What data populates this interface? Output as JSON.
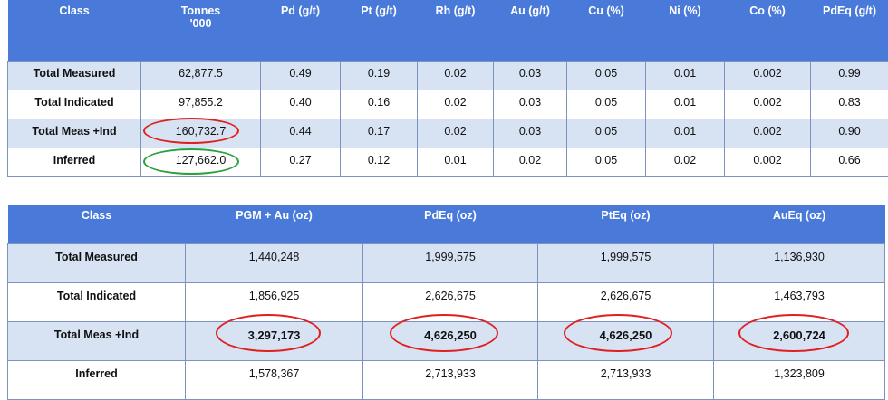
{
  "table1": {
    "headers": [
      "Class",
      "Tonnes\n'000",
      "Pd (g/t)",
      "Pt (g/t)",
      "Rh (g/t)",
      "Au (g/t)",
      "Cu (%)",
      "Ni (%)",
      "Co (%)",
      "PdEq (g/t)"
    ],
    "rows": [
      [
        "Total Measured",
        "62,877.5",
        "0.49",
        "0.19",
        "0.02",
        "0.03",
        "0.05",
        "0.01",
        "0.002",
        "0.99"
      ],
      [
        "Total Indicated",
        "97,855.2",
        "0.40",
        "0.16",
        "0.02",
        "0.03",
        "0.05",
        "0.01",
        "0.002",
        "0.83"
      ],
      [
        "Total Meas +Ind",
        "160,732.7",
        "0.44",
        "0.17",
        "0.02",
        "0.03",
        "0.05",
        "0.01",
        "0.002",
        "0.90"
      ],
      [
        "Inferred",
        "127,662.0",
        "0.27",
        "0.12",
        "0.01",
        "0.02",
        "0.05",
        "0.02",
        "0.002",
        "0.66"
      ]
    ]
  },
  "table2": {
    "headers": [
      "Class",
      "PGM + Au (oz)",
      "PdEq (oz)",
      "PtEq (oz)",
      "AuEq (oz)"
    ],
    "rows": [
      [
        "Total Measured",
        "1,440,248",
        "1,999,575",
        "1,999,575",
        "1,136,930"
      ],
      [
        "Total Indicated",
        "1,856,925",
        "2,626,675",
        "2,626,675",
        "1,463,793"
      ],
      [
        "Total Meas +Ind",
        "3,297,173",
        "4,626,250",
        "4,626,250",
        "2,600,724"
      ],
      [
        "Inferred",
        "1,578,367",
        "2,713,933",
        "2,713,933",
        "1,323,809"
      ]
    ]
  },
  "colors": {
    "header_bg": "#4a7ad9",
    "row_shade": "#d7e2f3",
    "border": "#7d93bd",
    "circle_red": "#e02020",
    "circle_green": "#2aa23a"
  }
}
